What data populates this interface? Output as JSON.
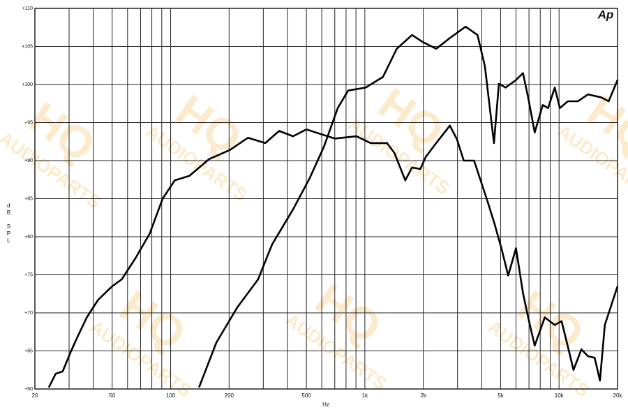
{
  "chart_data": {
    "type": "line",
    "logo": "Ap",
    "watermark": {
      "big": "HQ",
      "small": "AUDIOPARTS"
    },
    "ylabel": "dB SPL",
    "xlabel": "Hz",
    "xscale": "log",
    "grid": true,
    "xlim": [
      20,
      20000
    ],
    "ylim": [
      60,
      110
    ],
    "xticks": [
      20,
      50,
      100,
      200,
      500,
      {
        "value": 1000,
        "label": "1k"
      },
      {
        "value": 2000,
        "label": "2k"
      },
      {
        "value": 5000,
        "label": "5k"
      },
      {
        "value": 10000,
        "label": "10k"
      },
      {
        "value": 20000,
        "label": "20k"
      }
    ],
    "x_minor_ticks": [
      30,
      40,
      60,
      70,
      80,
      90,
      300,
      400,
      600,
      700,
      800,
      900,
      3000,
      4000,
      6000,
      7000,
      8000,
      9000
    ],
    "yticks": [
      {
        "value": 60,
        "label": "+60"
      },
      {
        "value": 65,
        "label": "+65"
      },
      {
        "value": 70,
        "label": "+70"
      },
      {
        "value": 75,
        "label": "+75"
      },
      {
        "value": 80,
        "label": "+80"
      },
      {
        "value": 85,
        "label": "+85"
      },
      {
        "value": 90,
        "label": "+90"
      },
      {
        "value": 95,
        "label": "+95"
      },
      {
        "value": 100,
        "label": "+100"
      },
      {
        "value": 105,
        "label": "+105"
      },
      {
        "value": 110,
        "label": "+110"
      }
    ],
    "series": [
      {
        "color": "#000000",
        "x": [
          23.6,
          25.6,
          27.8,
          30.5,
          32.8,
          37,
          42.3,
          50,
          56,
          66,
          78,
          91,
          105,
          125,
          158,
          202,
          250,
          307,
          362,
          427,
          500,
          590,
          700,
          905,
          1070,
          1300,
          1420,
          1615,
          1750,
          1930,
          2060,
          2330,
          2740,
          2980,
          3230,
          3650,
          4300,
          4650,
          5050,
          5470,
          6000,
          6520,
          6930,
          7490,
          8440,
          9500,
          10300,
          10970,
          11870,
          13030,
          14100,
          15250,
          16240,
          17200,
          20000
        ],
        "values": [
          60.2,
          62,
          62.3,
          64.8,
          66.6,
          69.4,
          71.7,
          73.5,
          74.4,
          77.2,
          80.4,
          85,
          87.4,
          88,
          90.2,
          91.4,
          93,
          92.3,
          93.9,
          93.2,
          94.1,
          93.5,
          92.9,
          93.2,
          92.3,
          92.3,
          91,
          87.4,
          89.1,
          88.9,
          90.5,
          92.3,
          94.6,
          92.8,
          90,
          90,
          84.5,
          81.7,
          78.5,
          74.9,
          78.5,
          72.6,
          69.4,
          65.7,
          69.4,
          68.4,
          68.9,
          66.1,
          62.5,
          65.2,
          64.3,
          64.1,
          61.1,
          68.4,
          73.5
        ]
      },
      {
        "color": "#000000",
        "x": [
          140,
          172,
          220,
          282,
          333,
          427,
          520,
          615,
          725,
          820,
          1010,
          1240,
          1460,
          1750,
          1980,
          2330,
          2740,
          3300,
          3800,
          4150,
          4620,
          4900,
          5300,
          6000,
          6520,
          6930,
          7490,
          8240,
          8780,
          9500,
          10100,
          11100,
          12500,
          14100,
          16500,
          18000,
          20000
        ],
        "values": [
          60.2,
          66.1,
          70.7,
          74.4,
          79,
          83.6,
          87.7,
          91.8,
          96.9,
          99.2,
          99.6,
          101,
          104.7,
          106.5,
          105.6,
          104.7,
          106.1,
          107.6,
          106.5,
          102.4,
          92.3,
          100.1,
          99.6,
          100.6,
          101.5,
          98.3,
          93.7,
          97.3,
          96.9,
          99.6,
          96.9,
          97.8,
          97.8,
          98.7,
          98.3,
          97.8,
          100.6
        ]
      }
    ]
  }
}
